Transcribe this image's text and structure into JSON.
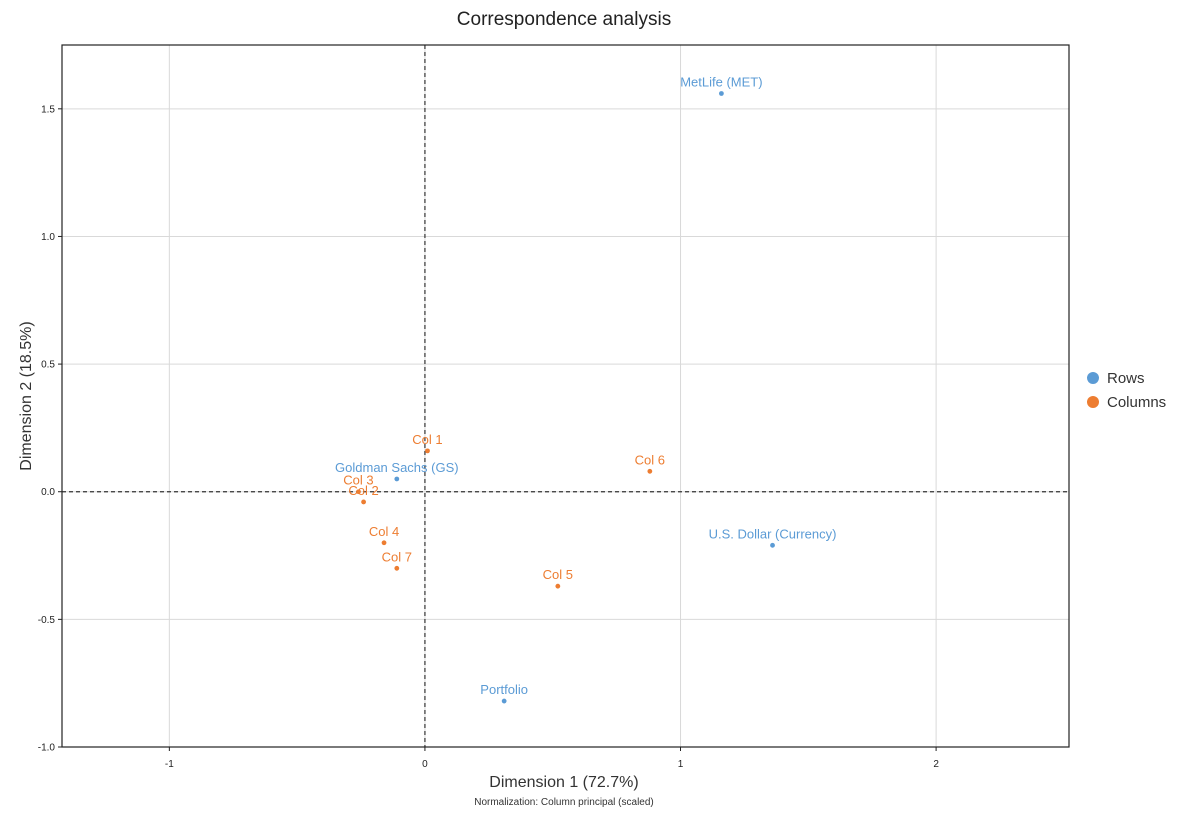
{
  "chart_data": {
    "type": "scatter",
    "title": "Correspondence analysis",
    "xlabel": "Dimension 1 (72.7%)",
    "ylabel": "Dimension 2 (18.5%)",
    "subtitle": "Normalization: Column principal (scaled)",
    "xlim": [
      -1.42,
      2.52
    ],
    "ylim": [
      -1.0,
      1.75
    ],
    "xticks": [
      -1,
      0,
      1,
      2
    ],
    "xtick_labels": [
      "-1",
      "0",
      "1",
      "2"
    ],
    "yticks": [
      -1.0,
      -0.5,
      0.0,
      0.5,
      1.0,
      1.5
    ],
    "ytick_labels": [
      "-1.0",
      "-0.5",
      "0.0",
      "0.5",
      "1.0",
      "1.5"
    ],
    "grid": true,
    "reference_lines": {
      "x": 0,
      "y": 0,
      "style": "dashed"
    },
    "legend_position": "right",
    "series": [
      {
        "name": "Rows",
        "color": "#5b9bd5",
        "points": [
          {
            "label": "MetLife (MET)",
            "x": 1.16,
            "y": 1.56
          },
          {
            "label": "Goldman Sachs (GS)",
            "x": -0.11,
            "y": 0.05
          },
          {
            "label": "U.S. Dollar (Currency)",
            "x": 1.36,
            "y": -0.21
          },
          {
            "label": "Portfolio",
            "x": 0.31,
            "y": -0.82
          }
        ]
      },
      {
        "name": "Columns",
        "color": "#ed7d31",
        "points": [
          {
            "label": "Col 1",
            "x": 0.01,
            "y": 0.16
          },
          {
            "label": "Col 6",
            "x": 0.88,
            "y": 0.08
          },
          {
            "label": "Col 3",
            "x": -0.26,
            "y": 0.0
          },
          {
            "label": "Col 2",
            "x": -0.24,
            "y": -0.04
          },
          {
            "label": "Col 4",
            "x": -0.16,
            "y": -0.2
          },
          {
            "label": "Col 7",
            "x": -0.11,
            "y": -0.3
          },
          {
            "label": "Col 5",
            "x": 0.52,
            "y": -0.37
          }
        ]
      }
    ]
  }
}
